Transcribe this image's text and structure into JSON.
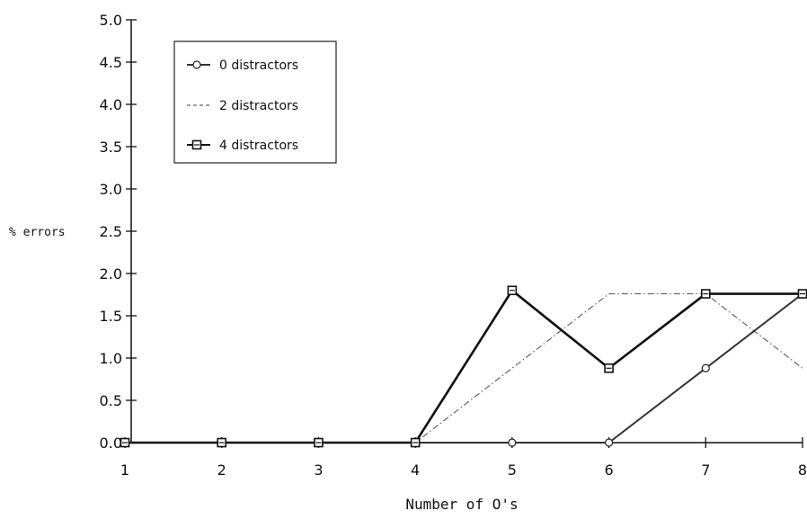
{
  "chart_data": {
    "type": "line",
    "title": "",
    "xlabel": "Number of O's",
    "ylabel": "% errors",
    "x": [
      1,
      2,
      3,
      4,
      5,
      6,
      7,
      8
    ],
    "xlim": [
      1,
      8
    ],
    "ylim": [
      0,
      5
    ],
    "yticks": [
      "0.0",
      "0.5",
      "1.0",
      "1.5",
      "2.0",
      "2.5",
      "3.0",
      "3.5",
      "4.0",
      "4.5",
      "5.0"
    ],
    "xticks": [
      "1",
      "2",
      "3",
      "4",
      "5",
      "6",
      "7",
      "8"
    ],
    "grid": false,
    "legend_position": "top-left",
    "series": [
      {
        "name": "0 distractors",
        "marker": "circle",
        "line": "solid",
        "color": "#333333",
        "values": [
          0.0,
          0.0,
          0.0,
          0.0,
          0.0,
          0.0,
          0.88,
          1.76
        ]
      },
      {
        "name": "2 distractors",
        "marker": "none",
        "line": "dashdot",
        "color": "#666666",
        "values": [
          0.0,
          0.0,
          0.0,
          0.0,
          0.88,
          1.76,
          1.76,
          0.88
        ]
      },
      {
        "name": "4 distractors",
        "marker": "square",
        "line": "solid",
        "color": "#111111",
        "values": [
          0.0,
          0.0,
          0.0,
          0.0,
          1.8,
          0.88,
          1.76,
          1.76
        ]
      }
    ]
  }
}
